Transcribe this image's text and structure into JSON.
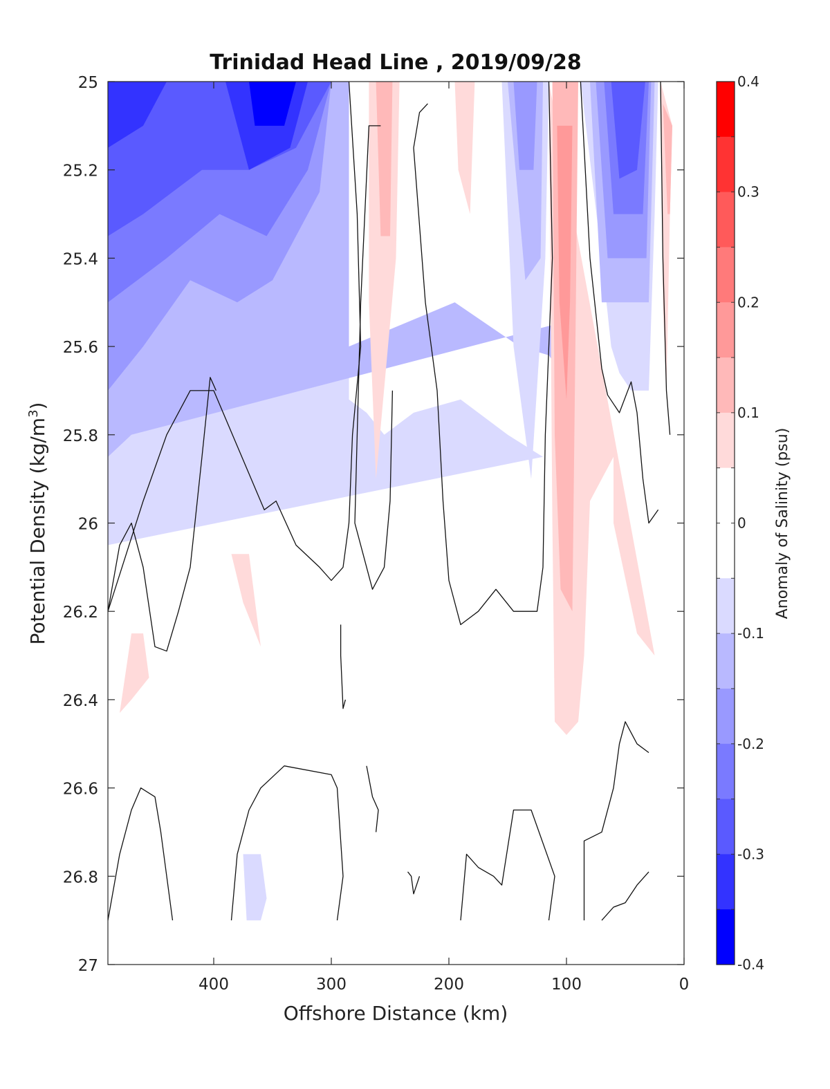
{
  "chart_data": {
    "type": "contour",
    "title": "Trinidad Head Line , 2019/09/28",
    "xlabel": "Offshore Distance (km)",
    "ylabel": "Potential Density (kg/m",
    "ylabel_sup": "3",
    "ylabel_tail": ")",
    "xlim": [
      490,
      0
    ],
    "ylim": [
      25,
      27
    ],
    "y_reversed": true,
    "xticks": [
      400,
      300,
      200,
      100,
      0
    ],
    "yticks": [
      "25",
      "25.2",
      "25.4",
      "25.6",
      "25.8",
      "26",
      "26.2",
      "26.4",
      "26.6",
      "26.8",
      "27"
    ],
    "colorbar": {
      "label": "Anomaly of Salinity (psu)",
      "range": [
        -0.4,
        0.4
      ],
      "step": 0.05,
      "ticks": [
        "0.4",
        "0.3",
        "0.2",
        "0.1",
        "0",
        "-0.1",
        "-0.2",
        "-0.3",
        "-0.4"
      ],
      "levels_top_to_bottom": [
        {
          "range": [
            0.35,
            0.4
          ],
          "color": "#ff0000"
        },
        {
          "range": [
            0.3,
            0.35
          ],
          "color": "#ff3333"
        },
        {
          "range": [
            0.25,
            0.3
          ],
          "color": "#ff5a5a"
        },
        {
          "range": [
            0.2,
            0.25
          ],
          "color": "#ff7a7a"
        },
        {
          "range": [
            0.15,
            0.2
          ],
          "color": "#ff9999"
        },
        {
          "range": [
            0.1,
            0.15
          ],
          "color": "#ffb9b9"
        },
        {
          "range": [
            0.05,
            0.1
          ],
          "color": "#ffdada"
        },
        {
          "range": [
            0,
            0.05
          ],
          "color": "#ffffff"
        },
        {
          "range": [
            -0.05,
            0
          ],
          "color": "#ffffff"
        },
        {
          "range": [
            -0.1,
            -0.05
          ],
          "color": "#dadaff"
        },
        {
          "range": [
            -0.15,
            -0.1
          ],
          "color": "#b9b9ff"
        },
        {
          "range": [
            -0.2,
            -0.15
          ],
          "color": "#9999ff"
        },
        {
          "range": [
            -0.25,
            -0.2
          ],
          "color": "#7a7aff"
        },
        {
          "range": [
            -0.3,
            -0.25
          ],
          "color": "#5a5aff"
        },
        {
          "range": [
            -0.35,
            -0.3
          ],
          "color": "#3333ff"
        },
        {
          "range": [
            -0.4,
            -0.35
          ],
          "color": "#0000ff"
        }
      ]
    },
    "filled_regions": [
      {
        "level": -0.05,
        "pts": [
          [
            490,
            25
          ],
          [
            285,
            25
          ],
          [
            285,
            25.72
          ],
          [
            270,
            25.75
          ],
          [
            255,
            25.8
          ],
          [
            230,
            25.75
          ],
          [
            190,
            25.72
          ],
          [
            150,
            25.8
          ],
          [
            120,
            25.85
          ],
          [
            490,
            26.05
          ]
        ]
      },
      {
        "level": -0.1,
        "pts": [
          [
            490,
            25
          ],
          [
            285,
            25
          ],
          [
            285,
            25.6
          ],
          [
            240,
            25.55
          ],
          [
            195,
            25.5
          ],
          [
            140,
            25.6
          ],
          [
            115,
            25.62
          ],
          [
            80,
            25.75
          ],
          [
            110,
            25.55
          ],
          [
            470,
            25.8
          ],
          [
            490,
            25.85
          ]
        ]
      },
      {
        "level": -0.15,
        "pts": [
          [
            490,
            25
          ],
          [
            300,
            25
          ],
          [
            310,
            25.25
          ],
          [
            350,
            25.45
          ],
          [
            380,
            25.5
          ],
          [
            420,
            25.45
          ],
          [
            460,
            25.6
          ],
          [
            490,
            25.7
          ]
        ]
      },
      {
        "level": -0.2,
        "pts": [
          [
            490,
            25
          ],
          [
            300,
            25
          ],
          [
            320,
            25.2
          ],
          [
            355,
            25.35
          ],
          [
            395,
            25.3
          ],
          [
            440,
            25.4
          ],
          [
            490,
            25.5
          ]
        ]
      },
      {
        "level": -0.25,
        "pts": [
          [
            490,
            25
          ],
          [
            300,
            25
          ],
          [
            330,
            25.15
          ],
          [
            370,
            25.2
          ],
          [
            410,
            25.2
          ],
          [
            460,
            25.3
          ],
          [
            490,
            25.35
          ]
        ]
      },
      {
        "level": -0.3,
        "pts": [
          [
            490,
            25
          ],
          [
            440,
            25
          ],
          [
            460,
            25.1
          ],
          [
            490,
            25.15
          ]
        ]
      },
      {
        "level": -0.3,
        "pts": [
          [
            390,
            25
          ],
          [
            320,
            25
          ],
          [
            335,
            25.15
          ],
          [
            370,
            25.2
          ]
        ]
      },
      {
        "level": -0.35,
        "pts": [
          [
            370,
            25
          ],
          [
            330,
            25
          ],
          [
            340,
            25.1
          ],
          [
            365,
            25.1
          ]
        ]
      },
      {
        "level": -0.05,
        "pts": [
          [
            155,
            25
          ],
          [
            115,
            25
          ],
          [
            118,
            25.4
          ],
          [
            130,
            25.9
          ],
          [
            145,
            25.6
          ]
        ]
      },
      {
        "level": -0.1,
        "pts": [
          [
            150,
            25
          ],
          [
            120,
            25
          ],
          [
            122,
            25.4
          ],
          [
            135,
            25.45
          ]
        ]
      },
      {
        "level": -0.15,
        "pts": [
          [
            145,
            25
          ],
          [
            125,
            25
          ],
          [
            128,
            25.2
          ],
          [
            140,
            25.2
          ]
        ]
      },
      {
        "level": -0.05,
        "pts": [
          [
            88,
            25
          ],
          [
            22,
            25
          ],
          [
            25,
            25.3
          ],
          [
            30,
            25.7
          ],
          [
            45,
            25.7
          ],
          [
            55,
            25.66
          ],
          [
            62,
            25.6
          ],
          [
            70,
            25.4
          ]
        ]
      },
      {
        "level": -0.1,
        "pts": [
          [
            80,
            25
          ],
          [
            25,
            25
          ],
          [
            30,
            25.5
          ],
          [
            70,
            25.5
          ]
        ]
      },
      {
        "level": -0.15,
        "pts": [
          [
            75,
            25
          ],
          [
            28,
            25
          ],
          [
            32,
            25.4
          ],
          [
            65,
            25.4
          ]
        ]
      },
      {
        "level": -0.2,
        "pts": [
          [
            68,
            25
          ],
          [
            30,
            25
          ],
          [
            35,
            25.3
          ],
          [
            60,
            25.3
          ]
        ]
      },
      {
        "level": -0.25,
        "pts": [
          [
            62,
            25
          ],
          [
            33,
            25
          ],
          [
            40,
            25.2
          ],
          [
            55,
            25.22
          ]
        ]
      },
      {
        "level": -0.05,
        "pts": [
          [
            375,
            26.75
          ],
          [
            360,
            26.75
          ],
          [
            355,
            26.85
          ],
          [
            360,
            26.9
          ],
          [
            372,
            26.9
          ]
        ]
      },
      {
        "level": 0.05,
        "pts": [
          [
            268,
            25
          ],
          [
            242,
            25
          ],
          [
            245,
            25.4
          ],
          [
            262,
            25.9
          ],
          [
            268,
            25.5
          ]
        ]
      },
      {
        "level": 0.1,
        "pts": [
          [
            262,
            25
          ],
          [
            248,
            25
          ],
          [
            250,
            25.35
          ],
          [
            258,
            25.35
          ]
        ]
      },
      {
        "level": 0.05,
        "pts": [
          [
            195,
            25
          ],
          [
            178,
            25
          ],
          [
            182,
            25.3
          ],
          [
            192,
            25.2
          ]
        ]
      },
      {
        "level": 0.05,
        "pts": [
          [
            115,
            25
          ],
          [
            25,
            26.3
          ],
          [
            40,
            26.25
          ],
          [
            60,
            26.0
          ],
          [
            60,
            25.85
          ],
          [
            80,
            25.95
          ],
          [
            85,
            26.3
          ],
          [
            90,
            26.45
          ],
          [
            100,
            26.48
          ],
          [
            110,
            26.45
          ],
          [
            112,
            26.0
          ]
        ]
      },
      {
        "level": 0.1,
        "pts": [
          [
            112,
            25
          ],
          [
            90,
            25
          ],
          [
            92,
            25.5
          ],
          [
            95,
            26.2
          ],
          [
            105,
            26.15
          ],
          [
            110,
            25.8
          ]
        ]
      },
      {
        "level": 0.15,
        "pts": [
          [
            108,
            25.1
          ],
          [
            95,
            25.1
          ],
          [
            97,
            25.5
          ],
          [
            100,
            25.72
          ],
          [
            106,
            25.5
          ]
        ]
      },
      {
        "level": 0.05,
        "pts": [
          [
            470,
            26.25
          ],
          [
            460,
            26.25
          ],
          [
            455,
            26.35
          ],
          [
            470,
            26.4
          ],
          [
            480,
            26.43
          ]
        ]
      },
      {
        "level": 0.05,
        "pts": [
          [
            385,
            26.07
          ],
          [
            370,
            26.07
          ],
          [
            360,
            26.28
          ],
          [
            375,
            26.18
          ]
        ]
      },
      {
        "level": 0.05,
        "pts": [
          [
            20,
            25
          ],
          [
            10,
            25.1
          ],
          [
            12,
            25.3
          ],
          [
            15,
            25.7
          ],
          [
            18,
            25.5
          ]
        ]
      },
      {
        "level": 0.1,
        "pts": [
          [
            18,
            25.05
          ],
          [
            10,
            25.1
          ],
          [
            12,
            25.3
          ],
          [
            14,
            25.3
          ]
        ]
      }
    ],
    "contour_lines": [
      [
        [
          285,
          25
        ],
        [
          278,
          25.3
        ],
        [
          275,
          25.6
        ],
        [
          282,
          25.8
        ],
        [
          285,
          26.0
        ],
        [
          290,
          26.1
        ],
        [
          300,
          26.13
        ],
        [
          310,
          26.1
        ],
        [
          330,
          26.05
        ],
        [
          347,
          25.95
        ],
        [
          357,
          25.97
        ],
        [
          400,
          25.7
        ],
        [
          420,
          25.7
        ],
        [
          440,
          25.8
        ],
        [
          460,
          25.95
        ],
        [
          478,
          26.1
        ],
        [
          490,
          26.2
        ]
      ],
      [
        [
          490,
          26.2
        ],
        [
          480,
          26.05
        ],
        [
          470,
          26.0
        ],
        [
          460,
          26.1
        ],
        [
          450,
          26.28
        ],
        [
          440,
          26.29
        ],
        [
          430,
          26.2
        ],
        [
          420,
          26.1
        ],
        [
          410,
          25.85
        ],
        [
          403,
          25.67
        ],
        [
          398,
          25.7
        ]
      ],
      [
        [
          490,
          26.9
        ],
        [
          480,
          26.75
        ],
        [
          470,
          26.65
        ],
        [
          462,
          26.6
        ],
        [
          450,
          26.62
        ],
        [
          445,
          26.7
        ],
        [
          440,
          26.8
        ],
        [
          435,
          26.9
        ]
      ],
      [
        [
          385,
          26.9
        ],
        [
          380,
          26.75
        ],
        [
          370,
          26.65
        ],
        [
          360,
          26.6
        ],
        [
          340,
          26.55
        ],
        [
          300,
          26.57
        ],
        [
          295,
          26.6
        ],
        [
          290,
          26.8
        ],
        [
          295,
          26.9
        ]
      ],
      [
        [
          270,
          26.55
        ],
        [
          265,
          26.62
        ],
        [
          260,
          26.65
        ],
        [
          262,
          26.7
        ]
      ],
      [
        [
          292,
          26.23
        ],
        [
          292,
          26.3
        ],
        [
          290,
          26.42
        ],
        [
          288,
          26.4
        ]
      ],
      [
        [
          235,
          26.79
        ],
        [
          232,
          26.8
        ],
        [
          230,
          26.84
        ],
        [
          225,
          26.8
        ]
      ],
      [
        [
          190,
          26.9
        ],
        [
          185,
          26.75
        ],
        [
          175,
          26.78
        ],
        [
          162,
          26.8
        ],
        [
          155,
          26.82
        ],
        [
          145,
          26.65
        ],
        [
          130,
          26.65
        ],
        [
          110,
          26.8
        ],
        [
          115,
          26.9
        ]
      ],
      [
        [
          85,
          26.9
        ],
        [
          85,
          26.72
        ],
        [
          70,
          26.7
        ],
        [
          60,
          26.6
        ],
        [
          55,
          26.5
        ],
        [
          50,
          26.45
        ],
        [
          40,
          26.5
        ],
        [
          30,
          26.52
        ]
      ],
      [
        [
          70,
          26.9
        ],
        [
          60,
          26.87
        ],
        [
          50,
          26.86
        ],
        [
          40,
          26.82
        ],
        [
          30,
          26.79
        ]
      ],
      [
        [
          248,
          25.7
        ],
        [
          250,
          25.95
        ],
        [
          255,
          26.1
        ],
        [
          265,
          26.15
        ],
        [
          280,
          26.0
        ],
        [
          275,
          25.5
        ],
        [
          268,
          25.1
        ],
        [
          258,
          25.1
        ]
      ],
      [
        [
          115,
          25
        ],
        [
          112,
          25.4
        ],
        [
          118,
          25.8
        ],
        [
          120,
          26.1
        ],
        [
          125,
          26.2
        ],
        [
          145,
          26.2
        ],
        [
          160,
          26.15
        ],
        [
          175,
          26.2
        ],
        [
          190,
          26.23
        ],
        [
          200,
          26.13
        ],
        [
          205,
          25.95
        ],
        [
          210,
          25.7
        ],
        [
          220,
          25.5
        ],
        [
          230,
          25.15
        ],
        [
          225,
          25.07
        ],
        [
          218,
          25.05
        ]
      ],
      [
        [
          88,
          25
        ],
        [
          80,
          25.4
        ],
        [
          70,
          25.65
        ],
        [
          65,
          25.71
        ],
        [
          55,
          25.75
        ],
        [
          45,
          25.68
        ],
        [
          40,
          25.75
        ],
        [
          35,
          25.9
        ],
        [
          30,
          26.0
        ],
        [
          22,
          25.97
        ]
      ],
      [
        [
          20,
          25
        ],
        [
          18,
          25.4
        ],
        [
          15,
          25.7
        ],
        [
          12,
          25.8
        ]
      ]
    ]
  }
}
